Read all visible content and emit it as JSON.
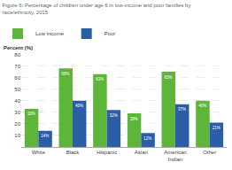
{
  "chart_data": {
    "type": "bar",
    "title": "Figure 6: Percentage of children under age 6 in low-income and poor families by\nrace/ethnicity, 2015",
    "ylabel": "Percent (%)",
    "categories": [
      "White",
      "Black",
      "Hispanic",
      "Asian",
      "American\nIndian",
      "Other"
    ],
    "series": [
      {
        "name": "Low income",
        "color": "#5db53a",
        "values": [
          33,
          68,
          63,
          29,
          65,
          40
        ],
        "value_labels": [
          "33%",
          "68%",
          "63%",
          "29%",
          "65%",
          "40%"
        ]
      },
      {
        "name": "Poor",
        "color": "#2b5ea6",
        "values": [
          14,
          40,
          32,
          12,
          37,
          21
        ],
        "value_labels": [
          "14%",
          "40%",
          "32%",
          "12%",
          "37%",
          "21%"
        ]
      }
    ],
    "ylim": [
      0,
      80
    ],
    "yticks": [
      10,
      20,
      30,
      40,
      50,
      60,
      70,
      80
    ],
    "grid": true,
    "legend": "upper left",
    "data_labels": true
  }
}
